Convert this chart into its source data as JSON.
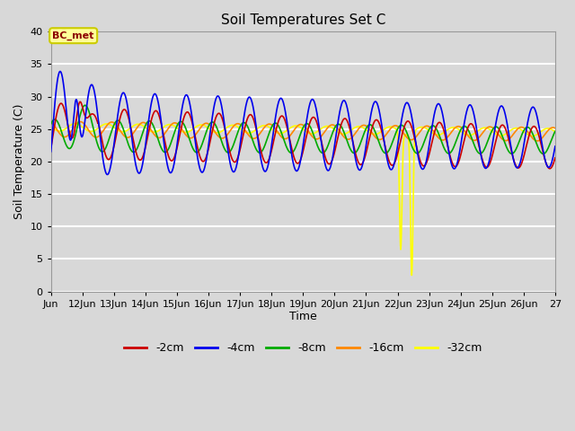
{
  "title": "Soil Temperatures Set C",
  "xlabel": "Time",
  "ylabel": "Soil Temperature (C)",
  "ylim": [
    0,
    40
  ],
  "yticks": [
    0,
    5,
    10,
    15,
    20,
    25,
    30,
    35,
    40
  ],
  "annotation_text": "BC_met",
  "annotation_color": "#8B0000",
  "annotation_bg": "#FFFF99",
  "annotation_border": "#CCCC00",
  "colors": {
    "-2cm": "#CC0000",
    "-4cm": "#0000EE",
    "-8cm": "#00AA00",
    "-16cm": "#FF8800",
    "-32cm": "#FFFF00"
  },
  "legend_labels": [
    "-2cm",
    "-4cm",
    "-8cm",
    "-16cm",
    "-32cm"
  ],
  "background_color": "#D8D8D8",
  "plot_bg": "#D8D8D8",
  "line_width": 1.2,
  "n_points": 1601,
  "x_start": 11,
  "x_end": 27,
  "xtick_positions": [
    11,
    12,
    13,
    14,
    15,
    16,
    17,
    18,
    19,
    20,
    21,
    22,
    23,
    24,
    25,
    26,
    27
  ],
  "xtick_labels": [
    "Jun",
    "12Jun",
    "13Jun",
    "14Jun",
    "15Jun",
    "16Jun",
    "17Jun",
    "18Jun",
    "19Jun",
    "20Jun",
    "21Jun",
    "22Jun",
    "23Jun",
    "24Jun",
    "25Jun",
    "26Jun",
    "27"
  ]
}
